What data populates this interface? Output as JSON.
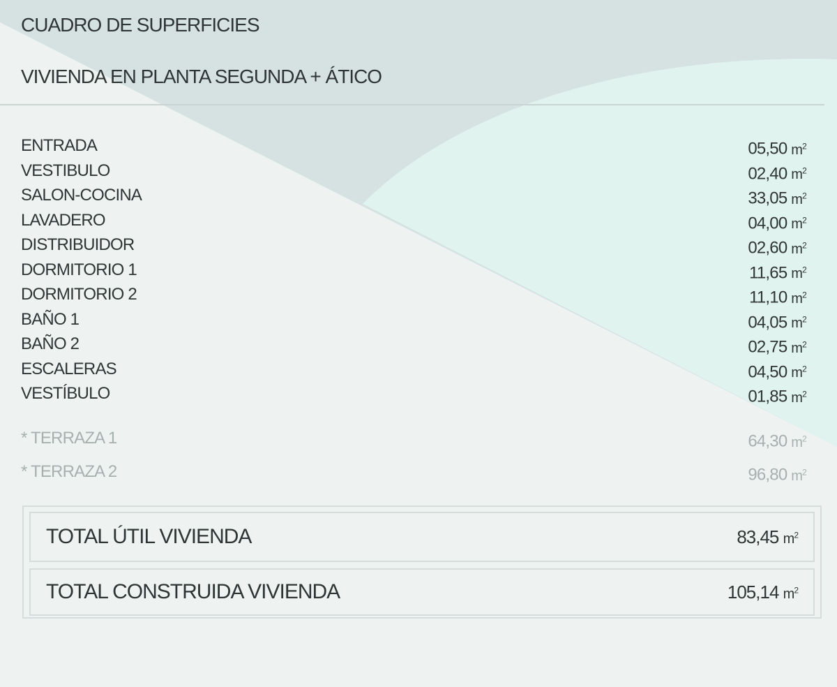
{
  "title": "CUADRO DE SUPERFICIES",
  "subtitle": "VIVIENDA EN PLANTA SEGUNDA + ÁTICO",
  "unit": "m",
  "unit_exp": "2",
  "rooms": [
    {
      "name": "ENTRADA",
      "value": "05,50"
    },
    {
      "name": "VESTIBULO",
      "value": "02,40"
    },
    {
      "name": "SALON-COCINA",
      "value": "33,05"
    },
    {
      "name": "LAVADERO",
      "value": "04,00"
    },
    {
      "name": "DISTRIBUIDOR",
      "value": "02,60"
    },
    {
      "name": "DORMITORIO 1",
      "value": "11,65"
    },
    {
      "name": "DORMITORIO 2",
      "value": "11,10"
    },
    {
      "name": "BAÑO 1",
      "value": "04,05"
    },
    {
      "name": "BAÑO 2",
      "value": "02,75"
    },
    {
      "name": "ESCALERAS",
      "value": "04,50"
    },
    {
      "name": "VESTÍBULO",
      "value": "01,85"
    }
  ],
  "terraces": [
    {
      "name": "* TERRAZA 1",
      "value": "64,30"
    },
    {
      "name": "* TERRAZA 2",
      "value": "96,80"
    }
  ],
  "totals": [
    {
      "label": "TOTAL ÚTIL VIVIENDA",
      "value": "83,45"
    },
    {
      "label": "TOTAL CONSTRUIDA VIVIENDA",
      "value": "105,14"
    }
  ],
  "colors": {
    "background": "#eef3f2",
    "band": "#d5e2e1",
    "mint": "#e0f3ef"
  }
}
